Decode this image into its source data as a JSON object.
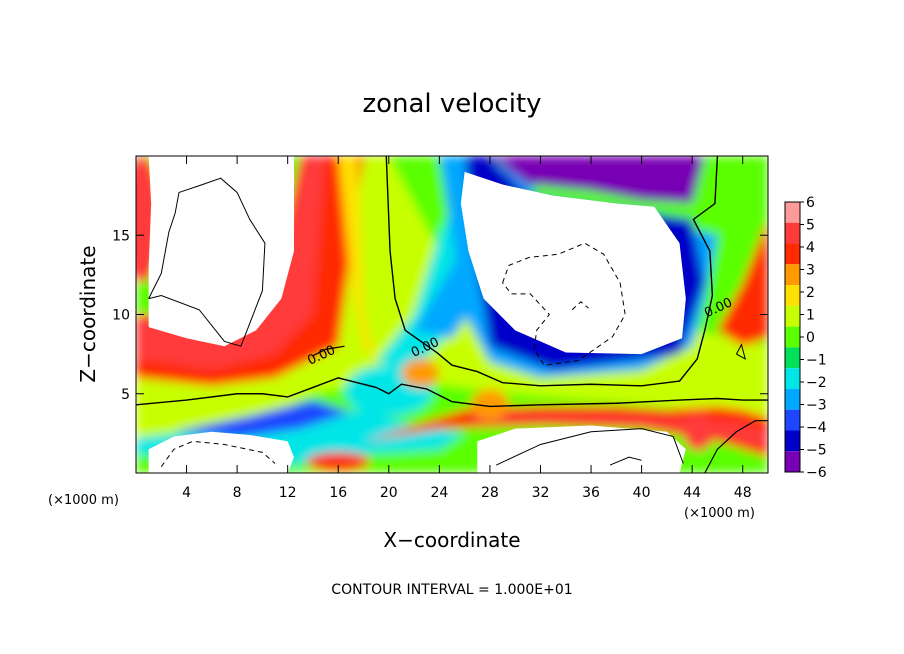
{
  "chart_data": {
    "type": "heatmap",
    "title": "zonal velocity",
    "xlabel": "X−coordinate",
    "ylabel": "Z−coordinate",
    "x_unit_left": "(×1000 m)",
    "x_unit_right": "(×1000 m)",
    "xlim": [
      0,
      50
    ],
    "ylim": [
      0,
      20
    ],
    "x_ticks": [
      4,
      8,
      12,
      16,
      20,
      24,
      28,
      32,
      36,
      40,
      44,
      48
    ],
    "y_ticks": [
      5,
      10,
      15
    ],
    "colorbar": {
      "ticks": [
        6,
        5,
        4,
        3,
        2,
        1,
        0,
        -1,
        -2,
        -3,
        -4,
        -5,
        -6
      ],
      "labels": [
        "6",
        "5",
        "4",
        "3",
        "2",
        "1",
        "0",
        "−1",
        "−2",
        "−3",
        "−4",
        "−5",
        "−6"
      ],
      "colors": [
        "#ff9a9a",
        "#ff3a3a",
        "#ff2a00",
        "#ff9a00",
        "#ffe100",
        "#c8ff00",
        "#5aff00",
        "#00e05a",
        "#00e6e6",
        "#00a8ff",
        "#1e46ff",
        "#0000c8",
        "#7800b4"
      ],
      "out_of_range": "#ffffff"
    },
    "contour_labels": [
      {
        "text": "0.00",
        "x": 14.8,
        "z": 7.2
      },
      {
        "text": "0.00",
        "x": 23.0,
        "z": 7.7
      },
      {
        "text": "0.00",
        "x": 46.2,
        "z": 10.2
      }
    ],
    "grid": false,
    "footer": "CONTOUR INTERVAL = 1.000E+01"
  }
}
